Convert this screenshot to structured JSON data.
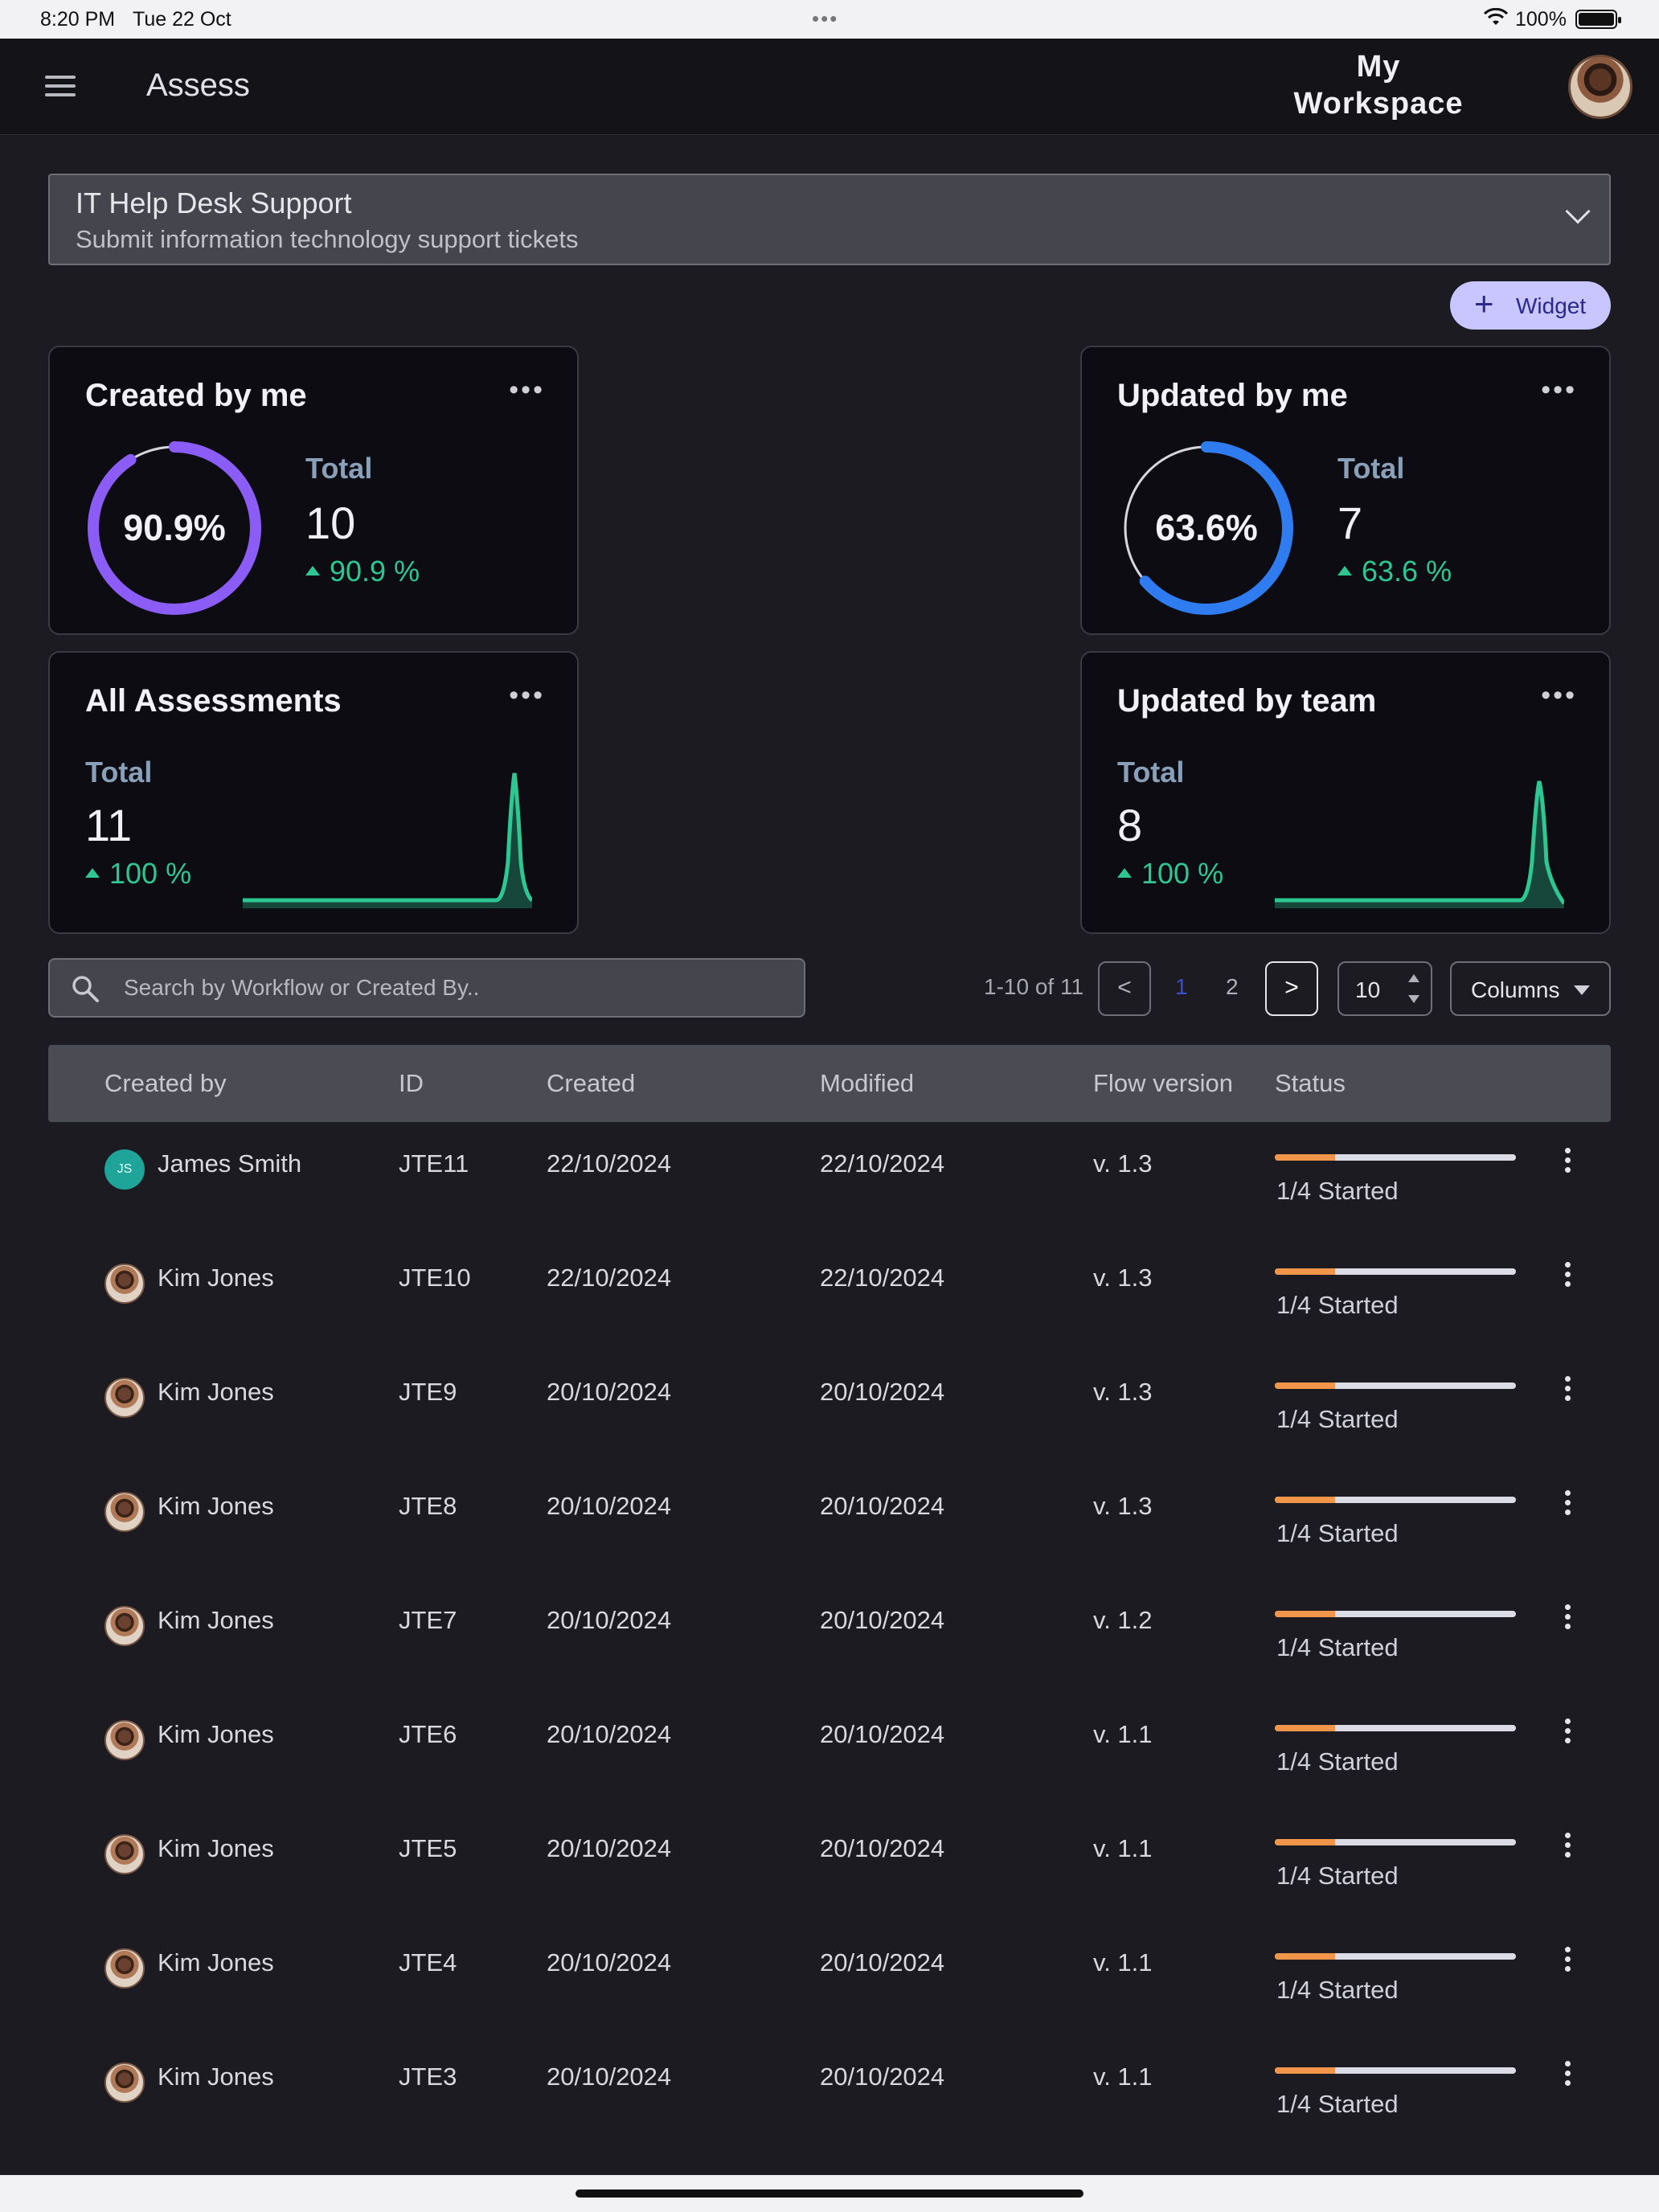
{
  "status_bar": {
    "time": "8:20 PM",
    "date": "Tue 22 Oct",
    "battery": "100%"
  },
  "app_bar": {
    "title": "Assess",
    "workspace": "My Workspace"
  },
  "workflow_selector": {
    "title": "IT Help Desk Support",
    "subtitle": "Submit information technology support tickets"
  },
  "widget_button": {
    "label": "Widget"
  },
  "cards": {
    "created_by_me": {
      "title": "Created by me",
      "total_label": "Total",
      "total": "10",
      "delta": "90.9 %",
      "ring_label": "90.9%",
      "percent": 90.9,
      "color": "#8b5cf6"
    },
    "updated_by_me": {
      "title": "Updated by me",
      "total_label": "Total",
      "total": "7",
      "delta": "63.6 %",
      "ring_label": "63.6%",
      "percent": 63.6,
      "color": "#2f7cf0"
    },
    "all_assessments": {
      "title": "All Assessments",
      "total_label": "Total",
      "total": "11",
      "delta": "100 %"
    },
    "updated_by_team": {
      "title": "Updated by team",
      "total_label": "Total",
      "total": "8",
      "delta": "100 %"
    }
  },
  "search": {
    "placeholder": "Search by Workflow or Created By.."
  },
  "pagination": {
    "range": "1-10 of 11",
    "prev": "<",
    "next": ">",
    "pages": [
      "1",
      "2"
    ],
    "per_page": "10"
  },
  "columns_button": {
    "label": "Columns"
  },
  "table": {
    "headers": [
      "Created by",
      "ID",
      "Created",
      "Modified",
      "Flow version",
      "Status"
    ],
    "rows": [
      {
        "name": "James Smith",
        "initials": "JS",
        "id": "JTE11",
        "created": "22/10/2024",
        "modified": "22/10/2024",
        "version": "v. 1.3",
        "status": "1/4 Started",
        "progress": 0.25
      },
      {
        "name": "Kim Jones",
        "id": "JTE10",
        "created": "22/10/2024",
        "modified": "22/10/2024",
        "version": "v. 1.3",
        "status": "1/4 Started",
        "progress": 0.25
      },
      {
        "name": "Kim Jones",
        "id": "JTE9",
        "created": "20/10/2024",
        "modified": "20/10/2024",
        "version": "v. 1.3",
        "status": "1/4 Started",
        "progress": 0.25
      },
      {
        "name": "Kim Jones",
        "id": "JTE8",
        "created": "20/10/2024",
        "modified": "20/10/2024",
        "version": "v. 1.3",
        "status": "1/4 Started",
        "progress": 0.25
      },
      {
        "name": "Kim Jones",
        "id": "JTE7",
        "created": "20/10/2024",
        "modified": "20/10/2024",
        "version": "v. 1.2",
        "status": "1/4 Started",
        "progress": 0.25
      },
      {
        "name": "Kim Jones",
        "id": "JTE6",
        "created": "20/10/2024",
        "modified": "20/10/2024",
        "version": "v. 1.1",
        "status": "1/4 Started",
        "progress": 0.25
      },
      {
        "name": "Kim Jones",
        "id": "JTE5",
        "created": "20/10/2024",
        "modified": "20/10/2024",
        "version": "v. 1.1",
        "status": "1/4 Started",
        "progress": 0.25
      },
      {
        "name": "Kim Jones",
        "id": "JTE4",
        "created": "20/10/2024",
        "modified": "20/10/2024",
        "version": "v. 1.1",
        "status": "1/4 Started",
        "progress": 0.25
      },
      {
        "name": "Kim Jones",
        "id": "JTE3",
        "created": "20/10/2024",
        "modified": "20/10/2024",
        "version": "v. 1.1",
        "status": "1/4 Started",
        "progress": 0.25
      }
    ]
  },
  "colors": {
    "accent": "#2ec792",
    "progress": "#f0954a",
    "widget": "#c8c5ff"
  }
}
